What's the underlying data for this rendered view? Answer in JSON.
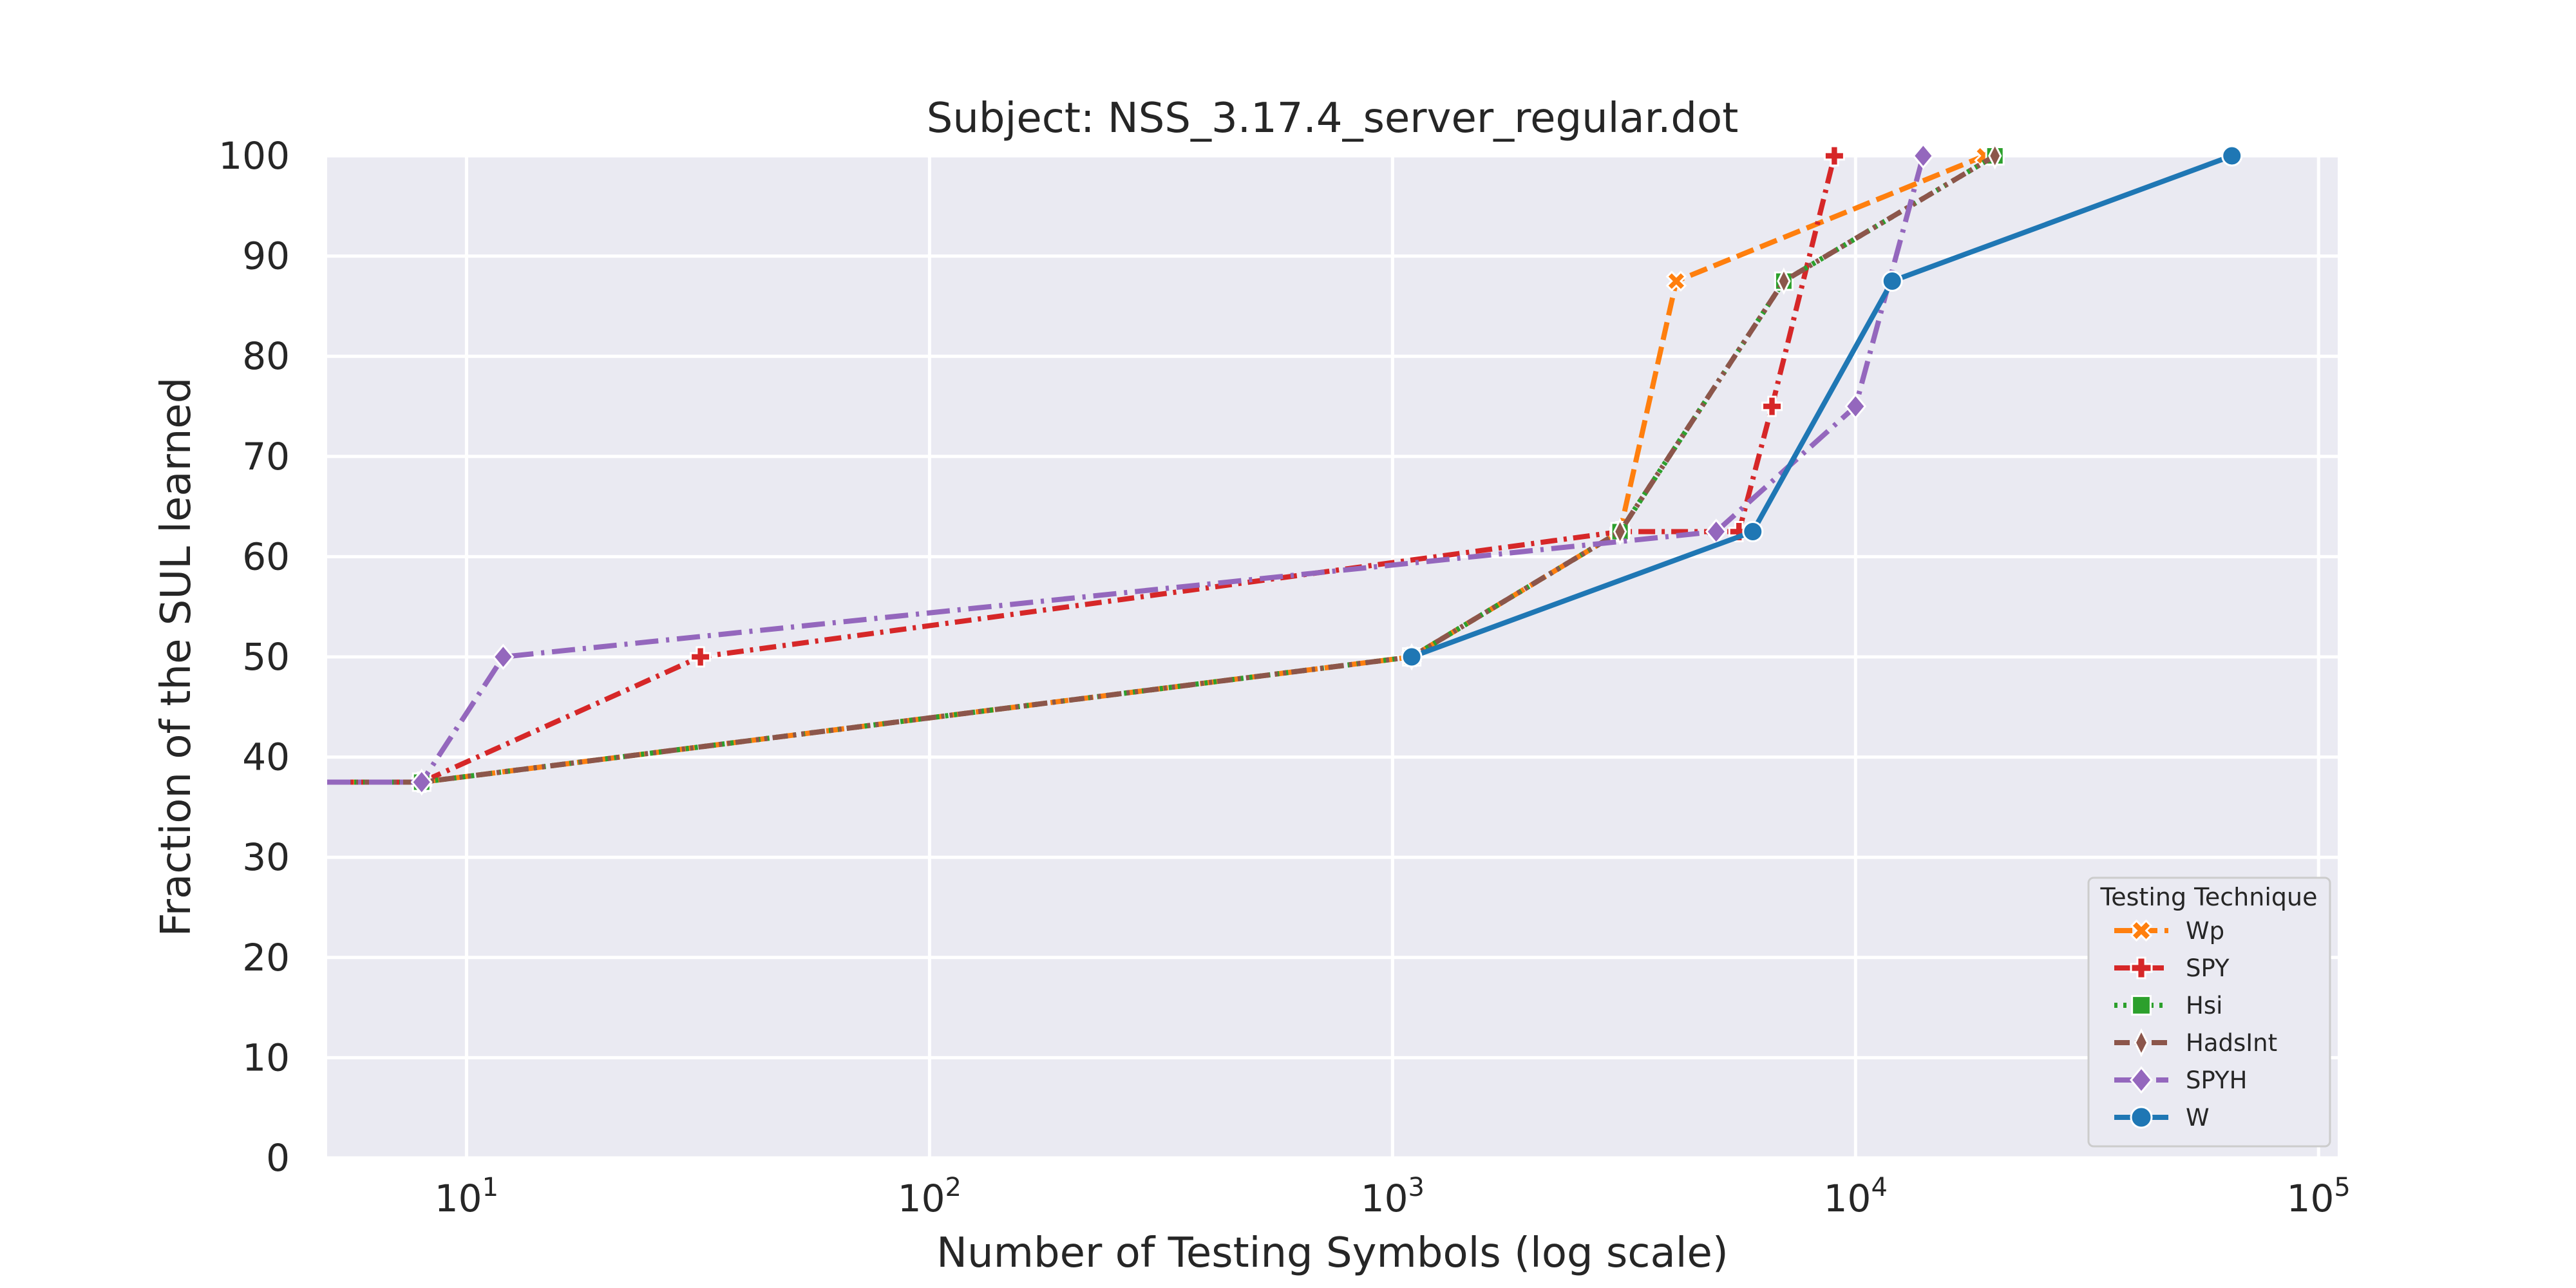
{
  "chart_data": {
    "type": "line",
    "title": "Subject: NSS_3.17.4_server_regular.dot",
    "xlabel": "Number of Testing Symbols (log scale)",
    "ylabel": "Fraction of the SUL learned",
    "xscale": "log",
    "xlim": [
      5,
      110000
    ],
    "ylim": [
      0,
      100
    ],
    "grid": true,
    "x_ticks": [
      {
        "value": 10,
        "base": "10",
        "exp": "1"
      },
      {
        "value": 100,
        "base": "10",
        "exp": "2"
      },
      {
        "value": 1000,
        "base": "10",
        "exp": "3"
      },
      {
        "value": 10000,
        "base": "10",
        "exp": "4"
      },
      {
        "value": 100000,
        "base": "10",
        "exp": "5"
      }
    ],
    "y_ticks": [
      {
        "value": 0,
        "label": "0"
      },
      {
        "value": 10,
        "label": "10"
      },
      {
        "value": 20,
        "label": "20"
      },
      {
        "value": 30,
        "label": "30"
      },
      {
        "value": 40,
        "label": "40"
      },
      {
        "value": 50,
        "label": "50"
      },
      {
        "value": 60,
        "label": "60"
      },
      {
        "value": 70,
        "label": "70"
      },
      {
        "value": 80,
        "label": "80"
      },
      {
        "value": 90,
        "label": "90"
      },
      {
        "value": 100,
        "label": "100"
      }
    ],
    "legend": {
      "title": "Testing Technique",
      "position": "lower-right"
    },
    "series": [
      {
        "name": "Wp",
        "color": "#ff7f0e",
        "dash": "dashed",
        "marker": "x",
        "x": [
          5,
          8,
          1100,
          3100,
          4100,
          19000
        ],
        "y": [
          37.5,
          37.5,
          50,
          62.5,
          87.5,
          100
        ]
      },
      {
        "name": "SPY",
        "color": "#d62728",
        "dash": "dashdot",
        "marker": "plus",
        "x": [
          5,
          8,
          32,
          3100,
          5600,
          6600,
          9000
        ],
        "y": [
          37.5,
          37.5,
          50,
          62.5,
          62.5,
          75,
          100
        ]
      },
      {
        "name": "Hsi",
        "color": "#2ca02c",
        "dash": "dotted",
        "marker": "square",
        "x": [
          5,
          8,
          1100,
          3100,
          7000,
          20000
        ],
        "y": [
          37.5,
          37.5,
          50,
          62.5,
          87.5,
          100
        ]
      },
      {
        "name": "HadsInt",
        "color": "#8c564b",
        "dash": "dashdotdot",
        "marker": "thin-diamond",
        "x": [
          5,
          8,
          1100,
          3100,
          7000,
          20000
        ],
        "y": [
          37.5,
          37.5,
          50,
          62.5,
          87.5,
          100
        ]
      },
      {
        "name": "SPYH",
        "color": "#9467bd",
        "dash": "longdashdot",
        "marker": "diamond",
        "x": [
          5,
          8,
          12,
          5000,
          10000,
          14000
        ],
        "y": [
          37.5,
          37.5,
          50,
          62.5,
          75,
          100
        ]
      },
      {
        "name": "W",
        "color": "#1f77b4",
        "dash": "solid",
        "marker": "circle",
        "x": [
          1100,
          6000,
          12000,
          65000
        ],
        "y": [
          50,
          62.5,
          87.5,
          100
        ]
      }
    ]
  }
}
